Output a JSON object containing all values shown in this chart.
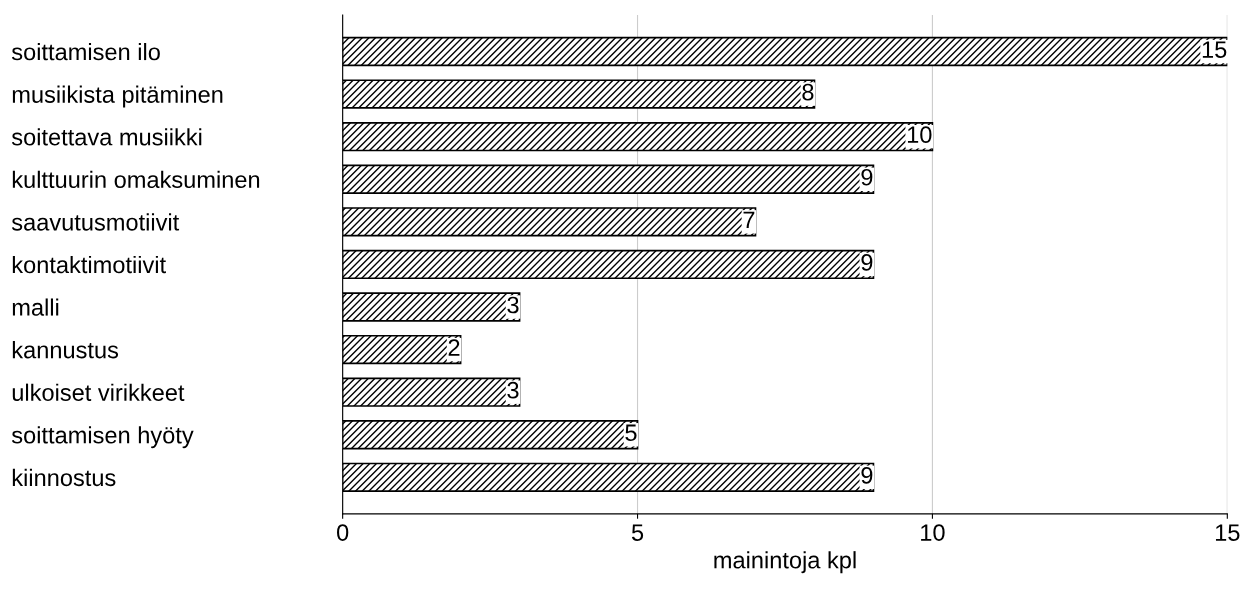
{
  "chart_data": {
    "type": "bar",
    "orientation": "horizontal",
    "xlabel": "mainintoja kpl",
    "categories": [
      "soittamisen ilo",
      "musiikista pitäminen",
      "soitettava musiikki",
      "kulttuurin omaksuminen",
      "saavutusmotiivit",
      "kontaktimotiivit",
      "malli",
      "kannustus",
      "ulkoiset virikkeet",
      "soittamisen hyöty",
      "kiinnostus"
    ],
    "values": [
      15,
      8,
      10,
      9,
      7,
      9,
      3,
      2,
      3,
      5,
      9
    ],
    "color": "#000000",
    "xlim": [
      0,
      15
    ],
    "xticks": [
      0,
      5,
      10,
      15
    ],
    "grid": "x",
    "data_labels": true
  }
}
